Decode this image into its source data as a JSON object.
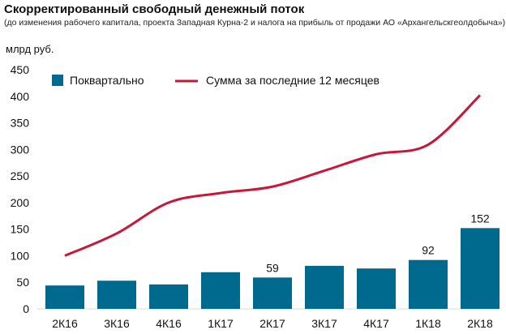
{
  "chart_data": {
    "type": "bar",
    "title": "Скорректированный свободный денежный поток",
    "subtitle": "(до изменения рабочего капитала, проекта Западная Курна-2 и налога на прибыль от продажи АО «Архангельскгеолдобыча»)",
    "ylabel": "млрд руб.",
    "ylim": [
      0,
      450
    ],
    "yticks": [
      "0",
      "50",
      "100",
      "150",
      "200",
      "250",
      "300",
      "350",
      "400",
      "450"
    ],
    "grid": false,
    "legend_position": "top",
    "categories": [
      "2К16",
      "3К16",
      "4К16",
      "1К17",
      "2К17",
      "3К17",
      "4К17",
      "1К18",
      "2К18"
    ],
    "series": [
      {
        "name": "Поквартально",
        "type": "bar",
        "color": "#006a8e",
        "values": [
          44,
          53,
          46,
          69,
          59,
          81,
          76,
          92,
          152
        ],
        "labels": [
          "",
          "",
          "",
          "",
          "59",
          "",
          "",
          "92",
          "152"
        ]
      },
      {
        "name": "Сумма за последние 12 месяцев",
        "type": "line",
        "color": "#c8173a",
        "values": [
          100,
          142,
          200,
          218,
          230,
          260,
          291,
          309,
          402
        ]
      }
    ]
  }
}
